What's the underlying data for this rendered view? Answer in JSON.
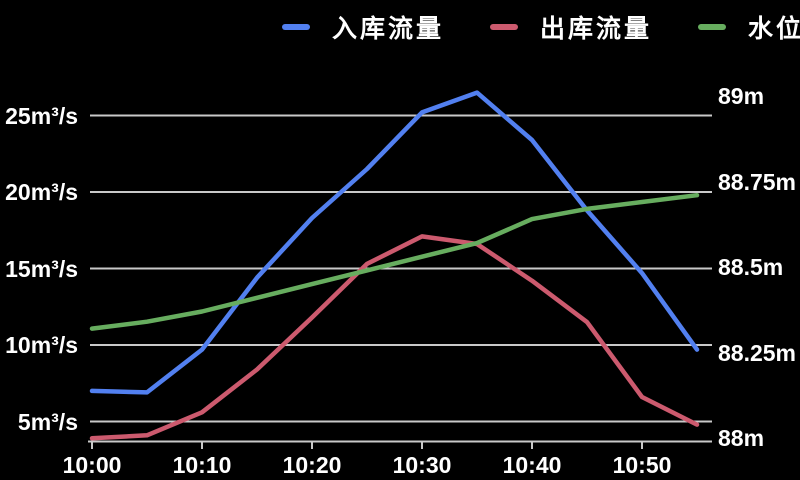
{
  "background": "#000000",
  "text_color": "#ffffff",
  "grid_color": "#c9c9c9",
  "legend": {
    "items": [
      {
        "key": "inflow",
        "label": "入库流量",
        "color": "#5280f0"
      },
      {
        "key": "outflow",
        "label": "出库流量",
        "color": "#cc5a6e"
      },
      {
        "key": "water-level",
        "label": "水位",
        "color": "#67ad5f"
      }
    ]
  },
  "chart_data": {
    "type": "line",
    "title": "",
    "x": [
      "10:00",
      "10:05",
      "10:10",
      "10:15",
      "10:20",
      "10:25",
      "10:30",
      "10:35",
      "10:40",
      "10:45",
      "10:50",
      "10:55"
    ],
    "x_tick_labels": [
      "10:00",
      "10:10",
      "10:20",
      "10:30",
      "10:40",
      "10:50"
    ],
    "series": [
      {
        "key": "inflow",
        "name": "入库流量",
        "axis": "left",
        "color": "#5280f0",
        "values": [
          7.0,
          6.9,
          9.7,
          14.4,
          18.3,
          21.5,
          25.2,
          26.5,
          23.4,
          18.8,
          14.7,
          9.7
        ]
      },
      {
        "key": "outflow",
        "name": "出库流量",
        "axis": "left",
        "color": "#cc5a6e",
        "values": [
          3.9,
          4.1,
          5.6,
          8.4,
          11.8,
          15.3,
          17.1,
          16.6,
          14.2,
          11.5,
          6.6,
          4.8
        ]
      },
      {
        "key": "water-level",
        "name": "水位",
        "axis": "right",
        "color": "#67ad5f",
        "values": [
          88.32,
          88.34,
          88.37,
          88.41,
          88.45,
          88.49,
          88.53,
          88.57,
          88.64,
          88.67,
          88.69,
          88.71
        ]
      }
    ],
    "y_left": {
      "unit": "m³/s",
      "ticks": [
        "5m³/s",
        "10m³/s",
        "15m³/s",
        "20m³/s",
        "25m³/s"
      ],
      "tick_values": [
        5,
        10,
        15,
        20,
        25
      ],
      "range": [
        3.7,
        26.8
      ]
    },
    "y_right": {
      "unit": "m",
      "ticks": [
        "88m",
        "88.25m",
        "88.5m",
        "88.75m",
        "89m"
      ],
      "tick_values": [
        88,
        88.25,
        88.5,
        88.75,
        89
      ],
      "range": [
        88,
        89.02
      ]
    },
    "grid": true,
    "legend_position": "top"
  }
}
